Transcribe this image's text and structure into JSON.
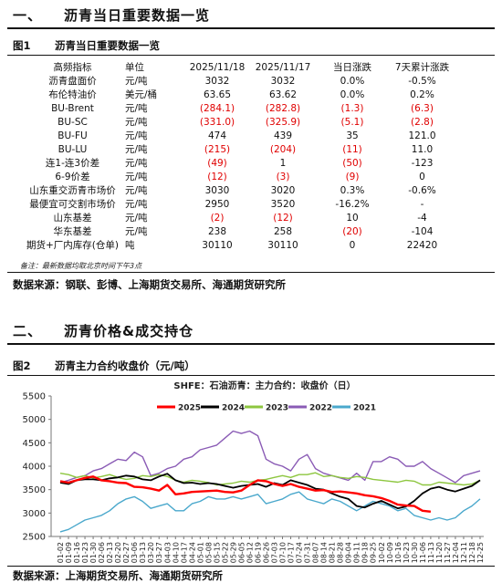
{
  "section1": {
    "num": "一、",
    "title": "沥青当日重要数据一览"
  },
  "figure1": {
    "num": "图1",
    "title": "沥青当日重要数据一览"
  },
  "table": {
    "headers": [
      "高频指标",
      "单位",
      "2025/11/18",
      "2025/11/17",
      "当日涨跌",
      "7天累计涨跌"
    ],
    "rows": [
      {
        "c0": "沥青盘面价",
        "c1": "元/吨",
        "c2": "3032",
        "c3": "3032",
        "c4": "0.0%",
        "c5": "-0.5%",
        "red": []
      },
      {
        "c0": "布伦特油价",
        "c1": "美元/桶",
        "c2": "63.65",
        "c3": "63.62",
        "c4": "0.0%",
        "c5": "0.2%",
        "red": []
      },
      {
        "c0": "BU-Brent",
        "c1": "元/吨",
        "c2": "(284.1)",
        "c3": "(282.8)",
        "c4": "(1.3)",
        "c5": "(6.3)",
        "red": [
          "c2",
          "c3",
          "c4",
          "c5"
        ]
      },
      {
        "c0": "BU-SC",
        "c1": "元/吨",
        "c2": "(331.0)",
        "c3": "(325.9)",
        "c4": "(5.1)",
        "c5": "(2.8)",
        "red": [
          "c2",
          "c3",
          "c4",
          "c5"
        ]
      },
      {
        "c0": "BU-FU",
        "c1": "元/吨",
        "c2": "474",
        "c3": "439",
        "c4": "35",
        "c5": "121.0",
        "red": []
      },
      {
        "c0": "BU-LU",
        "c1": "元/吨",
        "c2": "(215)",
        "c3": "(204)",
        "c4": "(11)",
        "c5": "11.0",
        "red": [
          "c2",
          "c3",
          "c4"
        ]
      },
      {
        "c0": "连1-连3价差",
        "c1": "元/吨",
        "c2": "(49)",
        "c3": "1",
        "c4": "(50)",
        "c5": "-123",
        "red": [
          "c2",
          "c4"
        ]
      },
      {
        "c0": "6-9价差",
        "c1": "元/吨",
        "c2": "(12)",
        "c3": "(3)",
        "c4": "(9)",
        "c5": "0",
        "red": [
          "c2",
          "c3",
          "c4"
        ]
      },
      {
        "c0": "山东重交沥青市场价",
        "c1": "元/吨",
        "c2": "3030",
        "c3": "3020",
        "c4": "0.3%",
        "c5": "-0.6%",
        "red": []
      },
      {
        "c0": "最便宜可交割市场价",
        "c1": "元/吨",
        "c2": "2950",
        "c3": "3520",
        "c4": "-16.2%",
        "c5": "-",
        "red": []
      },
      {
        "c0": "山东基差",
        "c1": "元/吨",
        "c2": "(2)",
        "c3": "(12)",
        "c4": "10",
        "c5": "-4",
        "red": [
          "c2",
          "c3"
        ]
      },
      {
        "c0": "华东基差",
        "c1": "元/吨",
        "c2": "238",
        "c3": "258",
        "c4": "(20)",
        "c5": "-104",
        "red": [
          "c4"
        ]
      },
      {
        "c0": "期货+厂内库存(仓单)",
        "c1": "吨",
        "c2": "30110",
        "c3": "30110",
        "c4": "0",
        "c5": "22420",
        "red": []
      }
    ],
    "note": "备注：最新数据均取北京时间下午3点"
  },
  "source1": "数据来源：钢联、彭博、上海期货交易所、海通期货研究所",
  "section2": {
    "num": "二、",
    "title": "沥青价格&成交持仓"
  },
  "figure2": {
    "num": "图2",
    "title": "沥青主力合约收盘价（元/吨）"
  },
  "source2": "数据来源：上海期货交易所、海通期货研究所",
  "chart_data": {
    "type": "line",
    "title": "SHFE：石油沥青：主力合约：收盘价（日）",
    "ylim": [
      2500,
      5500
    ],
    "yticks": [
      2500,
      3000,
      3500,
      4000,
      4500,
      5000,
      5500
    ],
    "x": [
      "01-02",
      "01-09",
      "01-16",
      "01-23",
      "01-30",
      "02-06",
      "02-13",
      "02-20",
      "02-27",
      "03-06",
      "03-13",
      "03-20",
      "03-27",
      "04-03",
      "04-10",
      "04-17",
      "04-24",
      "05-01",
      "05-08",
      "05-15",
      "05-22",
      "05-29",
      "06-05",
      "06-12",
      "06-19",
      "06-26",
      "07-03",
      "07-10",
      "07-17",
      "07-24",
      "07-31",
      "08-07",
      "08-14",
      "08-21",
      "08-28",
      "09-04",
      "09-11",
      "09-18",
      "09-25",
      "10-02",
      "10-09",
      "10-16",
      "10-23",
      "10-30",
      "11-06",
      "11-13",
      "11-20",
      "11-27",
      "12-04",
      "12-11",
      "12-18",
      "12-25"
    ],
    "grid": false,
    "legend": "top",
    "series": [
      {
        "name": "2025",
        "color": "#ff0000",
        "values": [
          3680,
          3650,
          3700,
          3750,
          3780,
          3700,
          3680,
          3650,
          3640,
          3560,
          3550,
          3520,
          3480,
          3600,
          3400,
          3420,
          3450,
          3460,
          3470,
          3480,
          3450,
          3440,
          3480,
          3600,
          3700,
          3680,
          3620,
          3580,
          3620,
          3560,
          3520,
          3480,
          3490,
          3450,
          3460,
          3440,
          3420,
          3380,
          3360,
          3320,
          3260,
          3180,
          3160,
          3150,
          3050,
          3030,
          null,
          null,
          null,
          null,
          null,
          null
        ]
      },
      {
        "name": "2024",
        "color": "#000000",
        "values": [
          3650,
          3620,
          3700,
          3720,
          3720,
          3700,
          3740,
          3760,
          3800,
          3780,
          3720,
          3700,
          3780,
          3840,
          3700,
          3640,
          3650,
          3620,
          3640,
          3620,
          3580,
          3540,
          3580,
          3600,
          3620,
          3560,
          3640,
          3600,
          3700,
          3650,
          3600,
          3520,
          3500,
          3420,
          3350,
          3300,
          3150,
          3120,
          3200,
          3260,
          3180,
          3100,
          3140,
          3260,
          3420,
          3520,
          3560,
          3500,
          3460,
          3520,
          3580,
          3700
        ]
      },
      {
        "name": "2023",
        "color": "#8dc63f",
        "values": [
          3850,
          3820,
          3760,
          3800,
          3750,
          3780,
          3820,
          3760,
          3720,
          3740,
          3800,
          3780,
          3820,
          3780,
          3700,
          3660,
          3700,
          3680,
          3650,
          3600,
          3620,
          3640,
          3680,
          3660,
          3700,
          3720,
          3760,
          3800,
          3760,
          3820,
          3820,
          3860,
          3780,
          3800,
          3760,
          3740,
          3780,
          3760,
          3720,
          3700,
          3680,
          3660,
          3700,
          3680,
          3600,
          3600,
          3660,
          3640,
          3620,
          3600,
          3620,
          3700
        ]
      },
      {
        "name": "2022",
        "color": "#8a5bb5",
        "values": [
          3650,
          3700,
          3760,
          3800,
          3900,
          3950,
          4050,
          4150,
          4120,
          4300,
          4200,
          3800,
          3850,
          3950,
          4000,
          4150,
          4200,
          4350,
          4400,
          4450,
          4600,
          4750,
          4700,
          4750,
          4650,
          4150,
          4050,
          4000,
          3900,
          4150,
          4250,
          3950,
          3850,
          3800,
          3750,
          3700,
          3850,
          3700,
          4100,
          4100,
          4200,
          4150,
          4000,
          4000,
          4100,
          3950,
          3850,
          3750,
          3650,
          3800,
          3850,
          3900
        ]
      },
      {
        "name": "2021",
        "color": "#4aa8cc",
        "values": [
          2600,
          2650,
          2750,
          2850,
          2900,
          2950,
          3050,
          3200,
          3300,
          3350,
          3250,
          3100,
          3150,
          3200,
          3050,
          3050,
          3200,
          3250,
          3350,
          3300,
          3300,
          3350,
          3300,
          3350,
          3400,
          3200,
          3250,
          3300,
          3400,
          3450,
          3300,
          3250,
          3200,
          3300,
          3250,
          3150,
          3050,
          3150,
          3250,
          3200,
          3150,
          3050,
          3100,
          2950,
          2900,
          2850,
          2900,
          2850,
          2900,
          3050,
          3150,
          3300
        ]
      }
    ]
  }
}
